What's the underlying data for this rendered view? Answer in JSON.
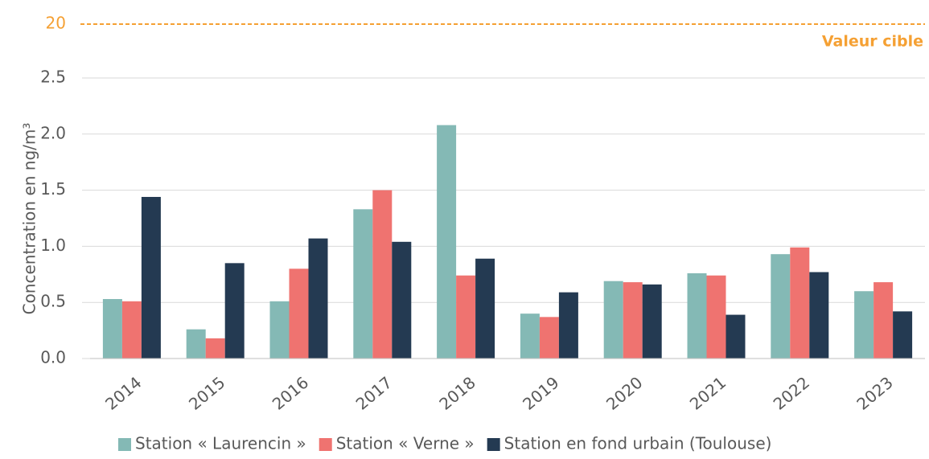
{
  "chart_data": {
    "type": "bar",
    "y_label": "Concentration en ng/m³",
    "categories": [
      "2014",
      "2015",
      "2016",
      "2017",
      "2018",
      "2019",
      "2020",
      "2021",
      "2022",
      "2023"
    ],
    "series": [
      {
        "name": "Station « Laurencin »",
        "color": "#84b9b5",
        "values": [
          0.53,
          0.26,
          0.51,
          1.33,
          2.08,
          0.4,
          0.69,
          0.76,
          0.93,
          0.6
        ]
      },
      {
        "name": "Station « Verne »",
        "color": "#ef7370",
        "values": [
          0.51,
          0.18,
          0.8,
          1.5,
          0.74,
          0.37,
          0.68,
          0.74,
          0.99,
          0.68
        ]
      },
      {
        "name": "Station en fond urbain (Toulouse)",
        "color": "#243a52",
        "values": [
          1.44,
          0.85,
          1.07,
          1.04,
          0.89,
          0.59,
          0.66,
          0.39,
          0.77,
          0.42
        ]
      }
    ],
    "ylim": [
      0,
      2.5
    ],
    "yticks": [
      {
        "value": 0,
        "label": "0.0"
      },
      0.5,
      {
        "value": 1,
        "label": "1.0"
      },
      1.5,
      {
        "value": 2,
        "label": "2.0"
      },
      2.5
    ],
    "grid": true,
    "target_line": {
      "value": 20,
      "label": "Valeur cible",
      "color": "#f5a033"
    },
    "legend": "bottom"
  }
}
